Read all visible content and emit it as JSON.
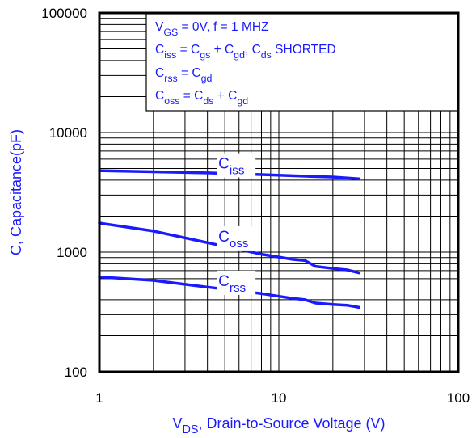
{
  "chart_data": {
    "type": "line",
    "title": "",
    "xlabel": {
      "main": "V",
      "sub": "DS",
      "rest": ", Drain-to-Source Voltage (V)"
    },
    "ylabel": "C, Capacitance(pF)",
    "xscale": "log",
    "yscale": "log",
    "xlim": [
      1,
      100
    ],
    "ylim": [
      100,
      100000
    ],
    "grid": true,
    "x_tick_labels": [
      "1",
      "10",
      "100"
    ],
    "y_tick_labels": [
      "100",
      "1000",
      "10000",
      "100000"
    ],
    "x_ticks": [
      1,
      10,
      100
    ],
    "y_ticks": [
      100,
      1000,
      10000,
      100000
    ],
    "series": [
      {
        "name": "C",
        "sub": "iss",
        "x": [
          1,
          2,
          4,
          8,
          15,
          20,
          28
        ],
        "y": [
          4800,
          4700,
          4600,
          4450,
          4300,
          4250,
          4100
        ]
      },
      {
        "name": "C",
        "sub": "oss",
        "x": [
          1,
          2,
          4,
          8,
          12,
          14,
          16,
          20,
          24,
          28
        ],
        "y": [
          1750,
          1500,
          1200,
          960,
          870,
          850,
          760,
          730,
          710,
          670
        ]
      },
      {
        "name": "C",
        "sub": "rss",
        "x": [
          1,
          2,
          4,
          8,
          12,
          14,
          16,
          20,
          24,
          28
        ],
        "y": [
          620,
          580,
          510,
          450,
          410,
          400,
          375,
          365,
          360,
          345
        ]
      }
    ],
    "annotation": [
      [
        {
          "t": "V"
        },
        {
          "t": "GS",
          "sub": true
        },
        {
          "t": " = 0V,        f = 1 MHZ"
        }
      ],
      [
        {
          "t": "C"
        },
        {
          "t": "iss",
          "sub": true
        },
        {
          "t": " = C"
        },
        {
          "t": "gs",
          "sub": true
        },
        {
          "t": " + C"
        },
        {
          "t": "gd",
          "sub": true
        },
        {
          "t": ",  C"
        },
        {
          "t": "ds",
          "sub": true
        },
        {
          "t": " SHORTED"
        }
      ],
      [
        {
          "t": "C"
        },
        {
          "t": "rss",
          "sub": true
        },
        {
          "t": " = C"
        },
        {
          "t": "gd",
          "sub": true
        }
      ],
      [
        {
          "t": "C"
        },
        {
          "t": "oss",
          "sub": true
        },
        {
          "t": " = C"
        },
        {
          "t": "ds",
          "sub": true
        },
        {
          "t": " + C"
        },
        {
          "t": "gd",
          "sub": true
        }
      ]
    ],
    "colors": {
      "series": "#1a1aff",
      "axis_label": "#1a1aff",
      "grid": "#000000"
    }
  }
}
